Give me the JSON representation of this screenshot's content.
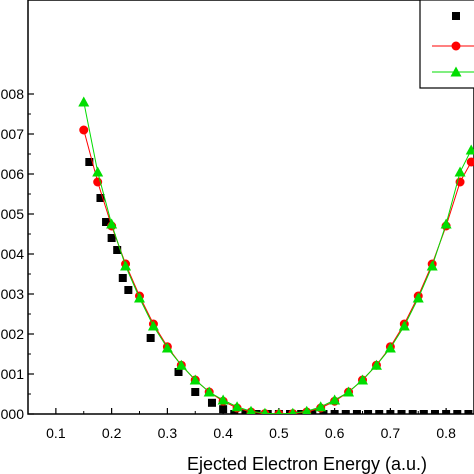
{
  "chart_data": {
    "type": "scatter",
    "title": "",
    "xlabel": "Ejected Electron Energy (a.u.)",
    "ylabel": "",
    "xlim": [
      0.05,
      0.85
    ],
    "ylim": [
      0.0,
      0.008
    ],
    "grid": false,
    "legend_placement": "top-right",
    "x_ticks": [
      "0.1",
      "0.2",
      "0.3",
      "0.4",
      "0.5",
      "0.6",
      "0.7",
      "0.8"
    ],
    "x_tick_values": [
      0.1,
      0.2,
      0.3,
      0.4,
      0.5,
      0.6,
      0.7,
      0.8
    ],
    "y_ticks": [
      "000",
      "001",
      "002",
      "003",
      "004",
      "005",
      "006",
      "007",
      "008"
    ],
    "y_tick_values": [
      0.0,
      0.001,
      0.002,
      0.003,
      0.004,
      0.005,
      0.006,
      0.007,
      0.008
    ],
    "series": [
      {
        "color": "#000000",
        "marker": "square",
        "line": false,
        "points": [
          [
            0.16,
            0.0063
          ],
          [
            0.18,
            0.0054
          ],
          [
            0.19,
            0.0048
          ],
          [
            0.2,
            0.0044
          ],
          [
            0.21,
            0.0041
          ],
          [
            0.22,
            0.0034
          ],
          [
            0.23,
            0.0031
          ],
          [
            0.27,
            0.0019
          ],
          [
            0.32,
            0.00105
          ],
          [
            0.35,
            0.00055
          ],
          [
            0.38,
            0.00028
          ],
          [
            0.4,
            0.00012
          ],
          [
            0.42,
            0.0
          ],
          [
            0.44,
            0.0
          ],
          [
            0.46,
            0.0
          ],
          [
            0.48,
            0.0
          ],
          [
            0.5,
            0.0
          ],
          [
            0.52,
            0.0
          ],
          [
            0.54,
            0.0
          ],
          [
            0.56,
            0.0
          ],
          [
            0.58,
            0.0
          ],
          [
            0.6,
            0.0
          ],
          [
            0.62,
            0.0
          ],
          [
            0.64,
            0.0
          ],
          [
            0.66,
            0.0
          ],
          [
            0.68,
            0.0
          ],
          [
            0.7,
            0.0
          ],
          [
            0.72,
            0.0
          ],
          [
            0.74,
            0.0
          ],
          [
            0.76,
            0.0
          ],
          [
            0.78,
            0.0
          ],
          [
            0.8,
            0.0
          ],
          [
            0.82,
            0.0
          ],
          [
            0.84,
            0.0
          ]
        ]
      },
      {
        "color": "#ff0000",
        "marker": "circle",
        "line": true,
        "points": [
          [
            0.15,
            0.0071
          ],
          [
            0.175,
            0.0058
          ],
          [
            0.2,
            0.0047
          ],
          [
            0.225,
            0.00375
          ],
          [
            0.25,
            0.00295
          ],
          [
            0.275,
            0.00225
          ],
          [
            0.3,
            0.00168
          ],
          [
            0.325,
            0.00122
          ],
          [
            0.35,
            0.00085
          ],
          [
            0.375,
            0.00055
          ],
          [
            0.4,
            0.00032
          ],
          [
            0.425,
            0.00015
          ],
          [
            0.45,
            5e-05
          ],
          [
            0.475,
            1e-05
          ],
          [
            0.5,
            0.0
          ],
          [
            0.525,
            1e-05
          ],
          [
            0.55,
            5e-05
          ],
          [
            0.575,
            0.00015
          ],
          [
            0.6,
            0.00032
          ],
          [
            0.625,
            0.00055
          ],
          [
            0.65,
            0.00085
          ],
          [
            0.675,
            0.00122
          ],
          [
            0.7,
            0.00168
          ],
          [
            0.725,
            0.00225
          ],
          [
            0.75,
            0.00295
          ],
          [
            0.775,
            0.00375
          ],
          [
            0.8,
            0.0047
          ],
          [
            0.825,
            0.0058
          ],
          [
            0.845,
            0.0063
          ]
        ]
      },
      {
        "color": "#00dd00",
        "marker": "triangle",
        "line": true,
        "points": [
          [
            0.15,
            0.0078
          ],
          [
            0.175,
            0.00605
          ],
          [
            0.2,
            0.00475
          ],
          [
            0.225,
            0.0037
          ],
          [
            0.25,
            0.0029
          ],
          [
            0.275,
            0.0022
          ],
          [
            0.3,
            0.00165
          ],
          [
            0.325,
            0.00122
          ],
          [
            0.35,
            0.00085
          ],
          [
            0.375,
            0.00055
          ],
          [
            0.4,
            0.00035
          ],
          [
            0.425,
            0.00018
          ],
          [
            0.45,
            7e-05
          ],
          [
            0.475,
            2e-05
          ],
          [
            0.5,
            0.0
          ],
          [
            0.525,
            2e-05
          ],
          [
            0.55,
            7e-05
          ],
          [
            0.575,
            0.00018
          ],
          [
            0.6,
            0.00035
          ],
          [
            0.625,
            0.00055
          ],
          [
            0.65,
            0.00085
          ],
          [
            0.675,
            0.00122
          ],
          [
            0.7,
            0.00165
          ],
          [
            0.725,
            0.0022
          ],
          [
            0.75,
            0.0029
          ],
          [
            0.775,
            0.0037
          ],
          [
            0.8,
            0.00475
          ],
          [
            0.825,
            0.00605
          ],
          [
            0.845,
            0.0066
          ]
        ]
      }
    ]
  }
}
